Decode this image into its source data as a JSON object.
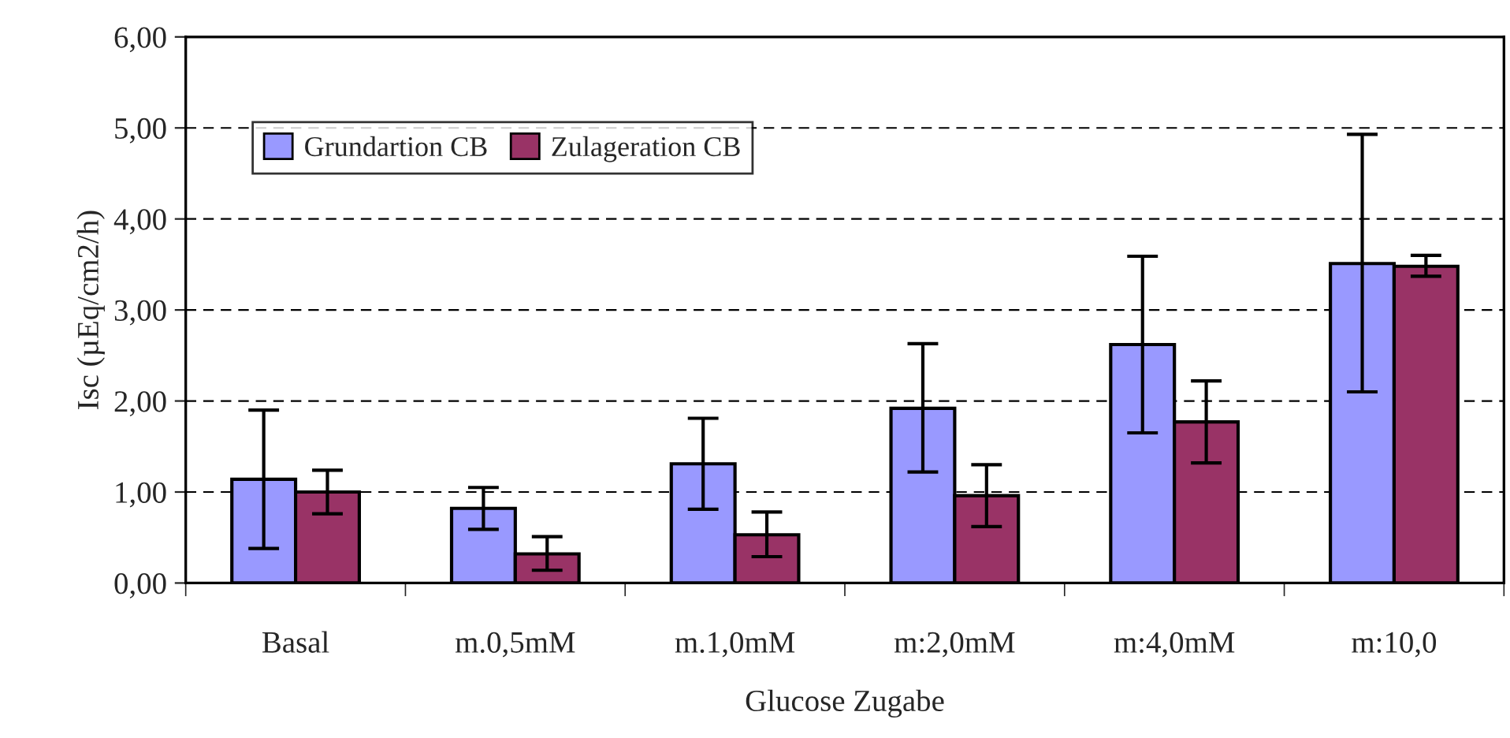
{
  "chart_data": {
    "type": "bar",
    "xlabel": "Glucose Zugabe",
    "ylabel": "Isc (µEq/cm2/h)",
    "categories": [
      "Basal",
      "m.0,5mM",
      "m.1,0mM",
      "m:2,0mM",
      "m:4,0mM",
      "m:10,0"
    ],
    "series": [
      {
        "name": "Grundartion CB",
        "color": "#9999ff",
        "values": [
          1.14,
          0.82,
          1.31,
          1.92,
          2.62,
          3.51
        ],
        "errors": [
          [
            0.38,
            1.9
          ],
          [
            0.59,
            1.05
          ],
          [
            0.81,
            1.81
          ],
          [
            1.22,
            2.63
          ],
          [
            1.65,
            3.59
          ],
          [
            2.1,
            4.93
          ]
        ]
      },
      {
        "name": "Zulageration CB",
        "color": "#993366",
        "values": [
          1.0,
          0.32,
          0.53,
          0.96,
          1.77,
          3.48
        ],
        "errors": [
          [
            0.76,
            1.24
          ],
          [
            0.14,
            0.51
          ],
          [
            0.29,
            0.78
          ],
          [
            0.62,
            1.3
          ],
          [
            1.32,
            2.22
          ],
          [
            3.37,
            3.6
          ]
        ]
      }
    ],
    "ylim": [
      0,
      6
    ],
    "yticks": [
      {
        "value": 0,
        "label": "0,00"
      },
      {
        "value": 1,
        "label": "1,00"
      },
      {
        "value": 2,
        "label": "2,00"
      },
      {
        "value": 3,
        "label": "3,00"
      },
      {
        "value": 4,
        "label": "4,00"
      },
      {
        "value": 5,
        "label": "5,00"
      },
      {
        "value": 6,
        "label": "6,00"
      }
    ],
    "grid": "y",
    "legend": "top left"
  }
}
